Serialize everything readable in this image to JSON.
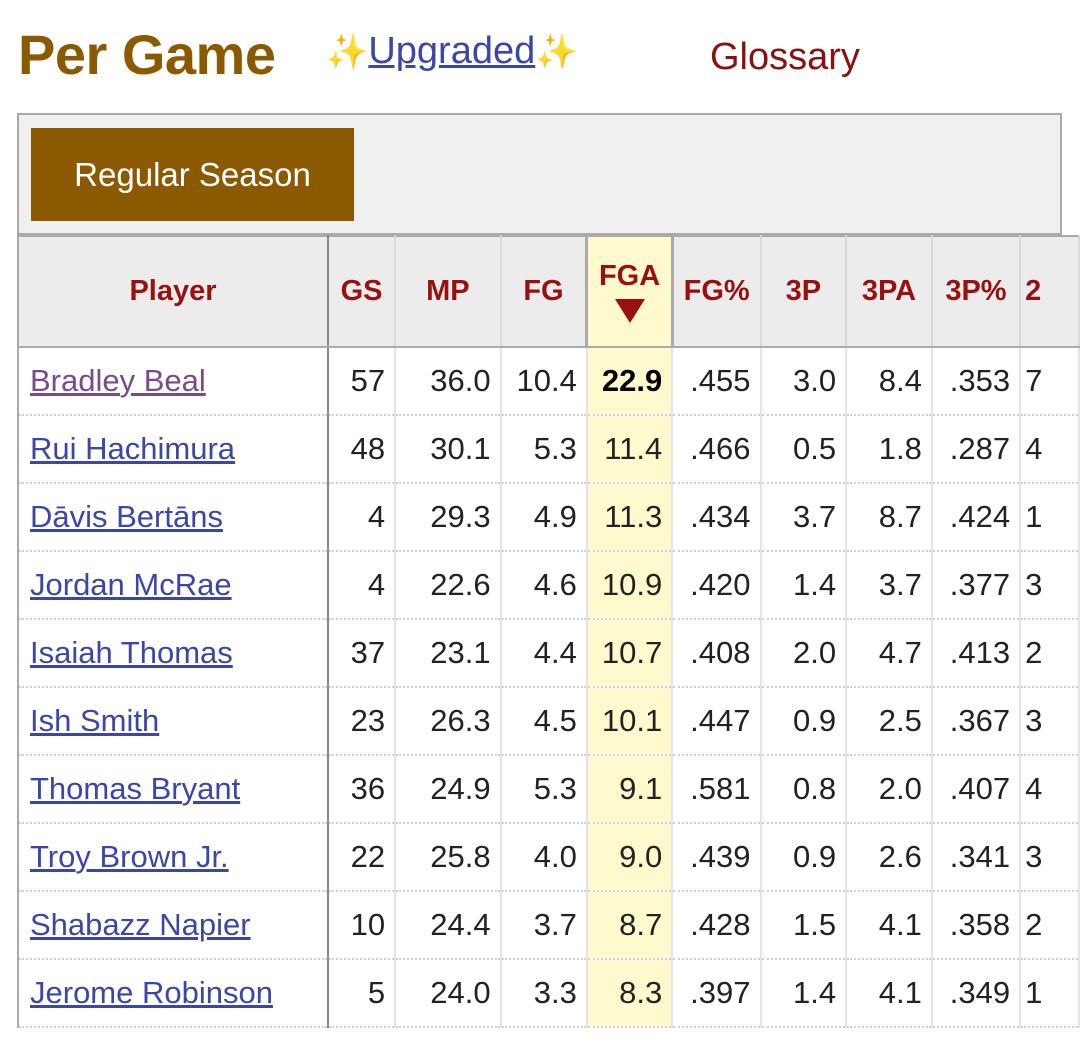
{
  "header": {
    "title": "Per Game",
    "sparkle_left": "✨",
    "upgraded_label": "Upgraded",
    "sparkle_right": "✨",
    "glossary_label": "Glossary"
  },
  "filter": {
    "season_button": "Regular Season"
  },
  "table": {
    "columns": [
      "Player",
      "GS",
      "MP",
      "FG",
      "FGA",
      "FG%",
      "3P",
      "3PA",
      "3P%",
      "2"
    ],
    "sorted_column": "FGA",
    "rows": [
      {
        "player": "Bradley Beal",
        "gs": "57",
        "mp": "36.0",
        "fg": "10.4",
        "fga": "22.9",
        "fgp": ".455",
        "p3": "3.0",
        "pa3": "8.4",
        "pp3": ".353",
        "p2": "7"
      },
      {
        "player": "Rui Hachimura",
        "gs": "48",
        "mp": "30.1",
        "fg": "5.3",
        "fga": "11.4",
        "fgp": ".466",
        "p3": "0.5",
        "pa3": "1.8",
        "pp3": ".287",
        "p2": "4"
      },
      {
        "player": "Dāvis Bertāns",
        "gs": "4",
        "mp": "29.3",
        "fg": "4.9",
        "fga": "11.3",
        "fgp": ".434",
        "p3": "3.7",
        "pa3": "8.7",
        "pp3": ".424",
        "p2": "1"
      },
      {
        "player": "Jordan McRae",
        "gs": "4",
        "mp": "22.6",
        "fg": "4.6",
        "fga": "10.9",
        "fgp": ".420",
        "p3": "1.4",
        "pa3": "3.7",
        "pp3": ".377",
        "p2": "3"
      },
      {
        "player": "Isaiah Thomas",
        "gs": "37",
        "mp": "23.1",
        "fg": "4.4",
        "fga": "10.7",
        "fgp": ".408",
        "p3": "2.0",
        "pa3": "4.7",
        "pp3": ".413",
        "p2": "2"
      },
      {
        "player": "Ish Smith",
        "gs": "23",
        "mp": "26.3",
        "fg": "4.5",
        "fga": "10.1",
        "fgp": ".447",
        "p3": "0.9",
        "pa3": "2.5",
        "pp3": ".367",
        "p2": "3"
      },
      {
        "player": "Thomas Bryant",
        "gs": "36",
        "mp": "24.9",
        "fg": "5.3",
        "fga": "9.1",
        "fgp": ".581",
        "p3": "0.8",
        "pa3": "2.0",
        "pp3": ".407",
        "p2": "4"
      },
      {
        "player": "Troy Brown Jr.",
        "gs": "22",
        "mp": "25.8",
        "fg": "4.0",
        "fga": "9.0",
        "fgp": ".439",
        "p3": "0.9",
        "pa3": "2.6",
        "pp3": ".341",
        "p2": "3"
      },
      {
        "player": "Shabazz Napier",
        "gs": "10",
        "mp": "24.4",
        "fg": "3.7",
        "fga": "8.7",
        "fgp": ".428",
        "p3": "1.5",
        "pa3": "4.1",
        "pp3": ".358",
        "p2": "2"
      },
      {
        "player": "Jerome Robinson",
        "gs": "5",
        "mp": "24.0",
        "fg": "3.3",
        "fga": "8.3",
        "fgp": ".397",
        "p3": "1.4",
        "pa3": "4.1",
        "pp3": ".349",
        "p2": "1"
      }
    ]
  },
  "colors": {
    "title": "#8b5a00",
    "header_text": "#9a1010",
    "link": "#3b47a8",
    "visited_link": "#7a4a8a",
    "sorted_column_bg": "#fffacd",
    "button_bg": "#8b5a00"
  }
}
